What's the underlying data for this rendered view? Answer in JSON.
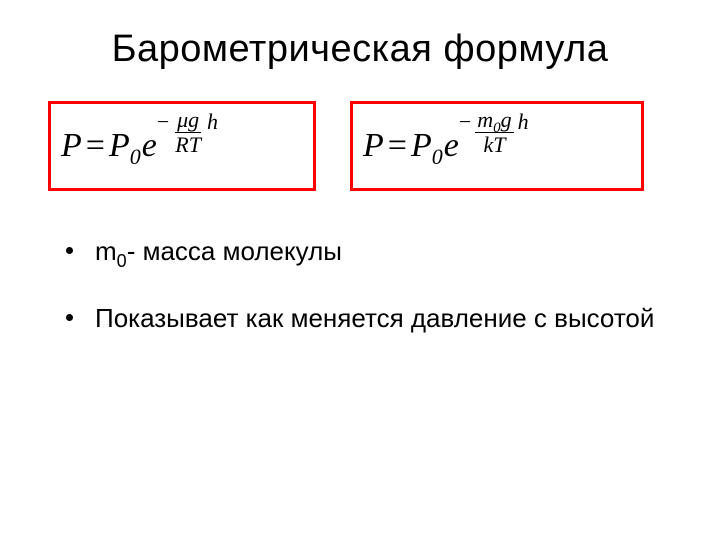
{
  "title": "Барометрическая формула",
  "formulas": {
    "left": {
      "P": "P",
      "eq": "=",
      "P0": "P",
      "sub0": "0",
      "e": "e",
      "minus": "−",
      "num_mu": "μ",
      "num_g": "g",
      "den_R": "R",
      "den_T": "T",
      "h": "h",
      "border_color": "#ff0000"
    },
    "right": {
      "P": "P",
      "eq": "=",
      "P0": "P",
      "sub0": "0",
      "e": "e",
      "minus": "−",
      "num_m": "m",
      "num_m0": "0",
      "num_g": "g",
      "den_k": "k",
      "den_T": "T",
      "h": "h",
      "border_color": "#ff0000"
    }
  },
  "bullets": {
    "b1": {
      "m": "m",
      "zero": "0",
      "rest": "- масса молекулы"
    },
    "b2": "Показывает как меняется давление с высотой"
  },
  "style": {
    "background": "#ffffff",
    "title_fontsize": 38,
    "formula_fontsize": 34,
    "bullet_fontsize": 26,
    "text_color": "#000000"
  }
}
